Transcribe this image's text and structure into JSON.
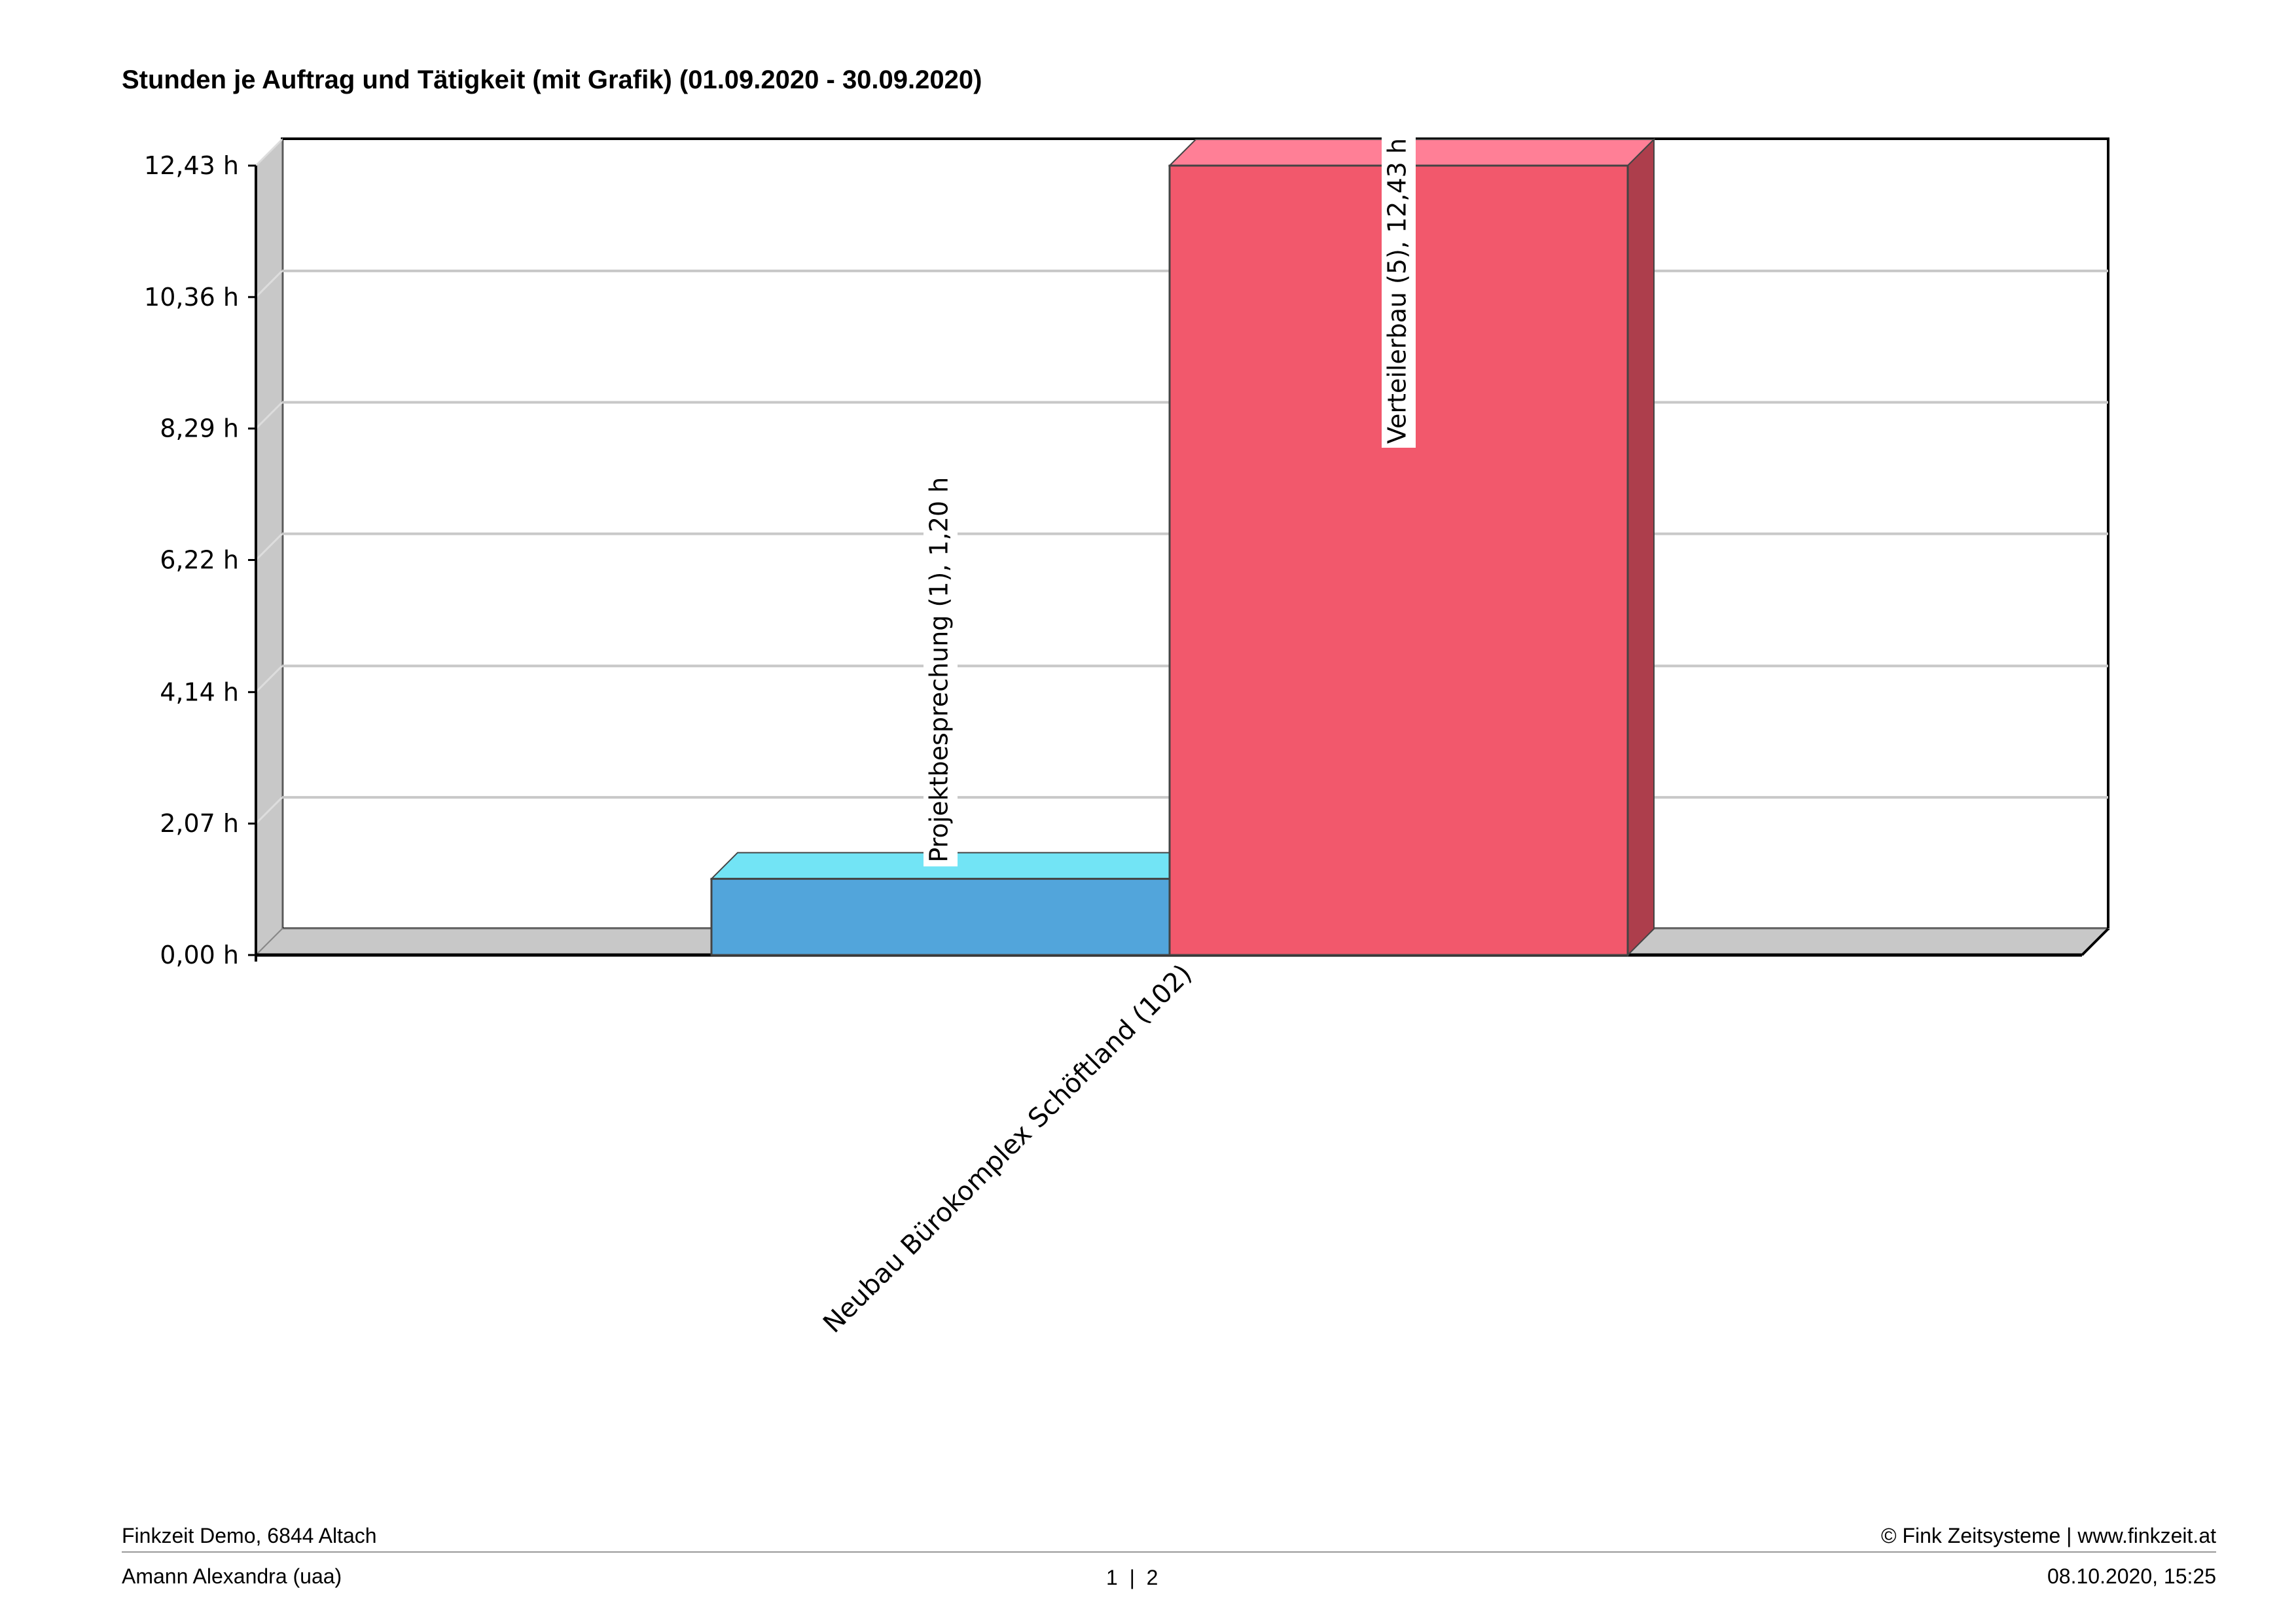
{
  "chart_data": {
    "type": "bar",
    "title": "Stunden je Auftrag und Tätigkeit (mit Grafik) (01.09.2020 - 30.09.2020)",
    "categories": [
      "Neubau Bürokomplex Schöftland (102)"
    ],
    "series": [
      {
        "name": "Projektbesprechung (1)",
        "values": [
          1.2
        ],
        "label": "Projektbesprechung (1), 1,20 h",
        "color": "#52a5db",
        "top_color": "#72e4f5"
      },
      {
        "name": "Verteilerbau (5)",
        "values": [
          12.43
        ],
        "label": "Verteilerbau (5), 12,43 h",
        "color": "#f2586c",
        "top_color": "#ff7f96",
        "side_color": "#ad3e4c"
      }
    ],
    "ylim": [
      0,
      12.43
    ],
    "yticks": [
      0,
      2.07,
      4.14,
      6.22,
      8.29,
      10.36,
      12.43
    ],
    "ytick_labels": [
      "0,00 h",
      "2,07 h",
      "4,14 h",
      "6,22 h",
      "8,29 h",
      "10,36 h",
      "12,43 h"
    ],
    "grid": true,
    "style": "3d"
  },
  "footer": {
    "company": "Finkzeit Demo, 6844 Altach",
    "copyright": "© Fink Zeitsysteme | www.finkzeit.at",
    "user": "Amann Alexandra (uaa)",
    "page": "1  |  2",
    "datetime": "08.10.2020, 15:25"
  }
}
